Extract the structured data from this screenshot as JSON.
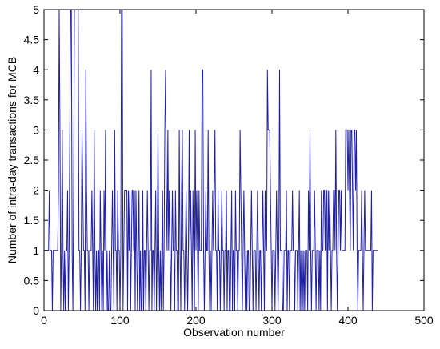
{
  "chart_data": {
    "type": "line",
    "title": "",
    "xlabel": "Observation number",
    "ylabel": "Number of intra-day transactions for MCB",
    "xlim": [
      0,
      500
    ],
    "ylim": [
      0,
      5
    ],
    "x_ticks": [
      "0",
      "100",
      "200",
      "300",
      "400",
      "500"
    ],
    "y_ticks": [
      "0",
      "0.5",
      "1",
      "1.5",
      "2",
      "2.5",
      "3",
      "3.5",
      "4",
      "4.5",
      "5"
    ],
    "grid": false,
    "line_color": "#1f1fa8",
    "series": [
      {
        "x_start": 1,
        "x_step": 1,
        "values": [
          1,
          1,
          1,
          1,
          1,
          1,
          2,
          1,
          1,
          1,
          0,
          1,
          1,
          1,
          1,
          1,
          1,
          1,
          2,
          5,
          3,
          0,
          1,
          3,
          1,
          0,
          1,
          0,
          1,
          1,
          2,
          0,
          1,
          3,
          5,
          5,
          1,
          0,
          2,
          5,
          5,
          5,
          5,
          5,
          5,
          1,
          1,
          0,
          1,
          3,
          2,
          1,
          1,
          0,
          4,
          2,
          1,
          1,
          0,
          1,
          1,
          1,
          2,
          1,
          0,
          3,
          1,
          0,
          1,
          0,
          1,
          1,
          0,
          2,
          1,
          0,
          1,
          0,
          2,
          1,
          3,
          0,
          1,
          0,
          0,
          1,
          0,
          0,
          1,
          2,
          1,
          0,
          3,
          1,
          1,
          0,
          2,
          1,
          1,
          0,
          1,
          5,
          5,
          0,
          1,
          2,
          2,
          2,
          2,
          0,
          2,
          1,
          2,
          0,
          1,
          2,
          2,
          1,
          2,
          0,
          2,
          1,
          0,
          1,
          2,
          0,
          1,
          0,
          0,
          2,
          0,
          1,
          1,
          0,
          1,
          2,
          1,
          0,
          1,
          1,
          4,
          0,
          1,
          1,
          0,
          1,
          2,
          0,
          1,
          3,
          1,
          0,
          1,
          0,
          1,
          2,
          0,
          1,
          3,
          4,
          2,
          1,
          3,
          1,
          2,
          1,
          0,
          1,
          2,
          1,
          1,
          0,
          2,
          1,
          1,
          0,
          0,
          3,
          1,
          0,
          2,
          3,
          1,
          1,
          0,
          1,
          2,
          1,
          0,
          1,
          3,
          1,
          2,
          1,
          0,
          2,
          1,
          0,
          3,
          1,
          2,
          1,
          0,
          2,
          1,
          1,
          1,
          4,
          4,
          1,
          0,
          1,
          2,
          1,
          1,
          3,
          1,
          0,
          1,
          0,
          1,
          2,
          1,
          2,
          3,
          1,
          1,
          0,
          2,
          1,
          1,
          0,
          1,
          2,
          1,
          1,
          0,
          1,
          1,
          2,
          0,
          1,
          1,
          0,
          0,
          1,
          2,
          0,
          1,
          1,
          0,
          2,
          1,
          1,
          0,
          1,
          1,
          3,
          2,
          1,
          0,
          1,
          2,
          1,
          0,
          1,
          0,
          1,
          1,
          0,
          0,
          1,
          2,
          1,
          0,
          1,
          1,
          1,
          0,
          1,
          2,
          1,
          0,
          1,
          1,
          0,
          1,
          2,
          1,
          0,
          2,
          1,
          1,
          4,
          3,
          3,
          3,
          2,
          1,
          0,
          1,
          1,
          1,
          0,
          1,
          2,
          1,
          0,
          1,
          4,
          1,
          1,
          1,
          0,
          0,
          1,
          1,
          1,
          2,
          0,
          1,
          1,
          0,
          1,
          1,
          1,
          2,
          1,
          1,
          0,
          1,
          1,
          1,
          0,
          1,
          2,
          0,
          1,
          0,
          1,
          0,
          1,
          0,
          1,
          1,
          1,
          0,
          2,
          1,
          3,
          1,
          0,
          1,
          1,
          1,
          2,
          1,
          0,
          1,
          1,
          1,
          0,
          1,
          0,
          2,
          1,
          1,
          2,
          2,
          1,
          2,
          2,
          0,
          2,
          1,
          2,
          1,
          0,
          1,
          1,
          2,
          2,
          1,
          3,
          1,
          0,
          1,
          2,
          2,
          1,
          2,
          1,
          1,
          1,
          1,
          1,
          3,
          3,
          3,
          2,
          3,
          2,
          1,
          3,
          3,
          2,
          1,
          3,
          3,
          2,
          3,
          1,
          0,
          1,
          1,
          1,
          1,
          2,
          1,
          0,
          1,
          2,
          1,
          1,
          1,
          1,
          1,
          1,
          1,
          1,
          2,
          0,
          1,
          1,
          1,
          1,
          1,
          1,
          1
        ]
      }
    ]
  }
}
